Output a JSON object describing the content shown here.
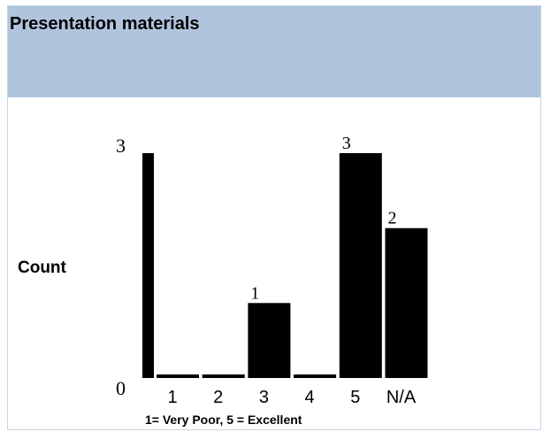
{
  "header": {
    "title": "Presentation materials"
  },
  "colors": {
    "header_background": "#b0c4de",
    "bar_fill": "#000000",
    "background": "#ffffff"
  },
  "chart_data": {
    "type": "bar",
    "title": "",
    "categories": [
      "1",
      "2",
      "3",
      "4",
      "5",
      "N/A"
    ],
    "values": [
      0,
      0,
      1,
      0,
      3,
      2
    ],
    "data_labels": [
      "",
      "",
      "1",
      "",
      "3",
      "2"
    ],
    "ylabel": "Count",
    "xlabel": "1= Very Poor, 5 = Excellent",
    "y_ticks": [
      "0",
      "3"
    ],
    "ylim": [
      0,
      3
    ],
    "grid": false,
    "legend": "none"
  }
}
